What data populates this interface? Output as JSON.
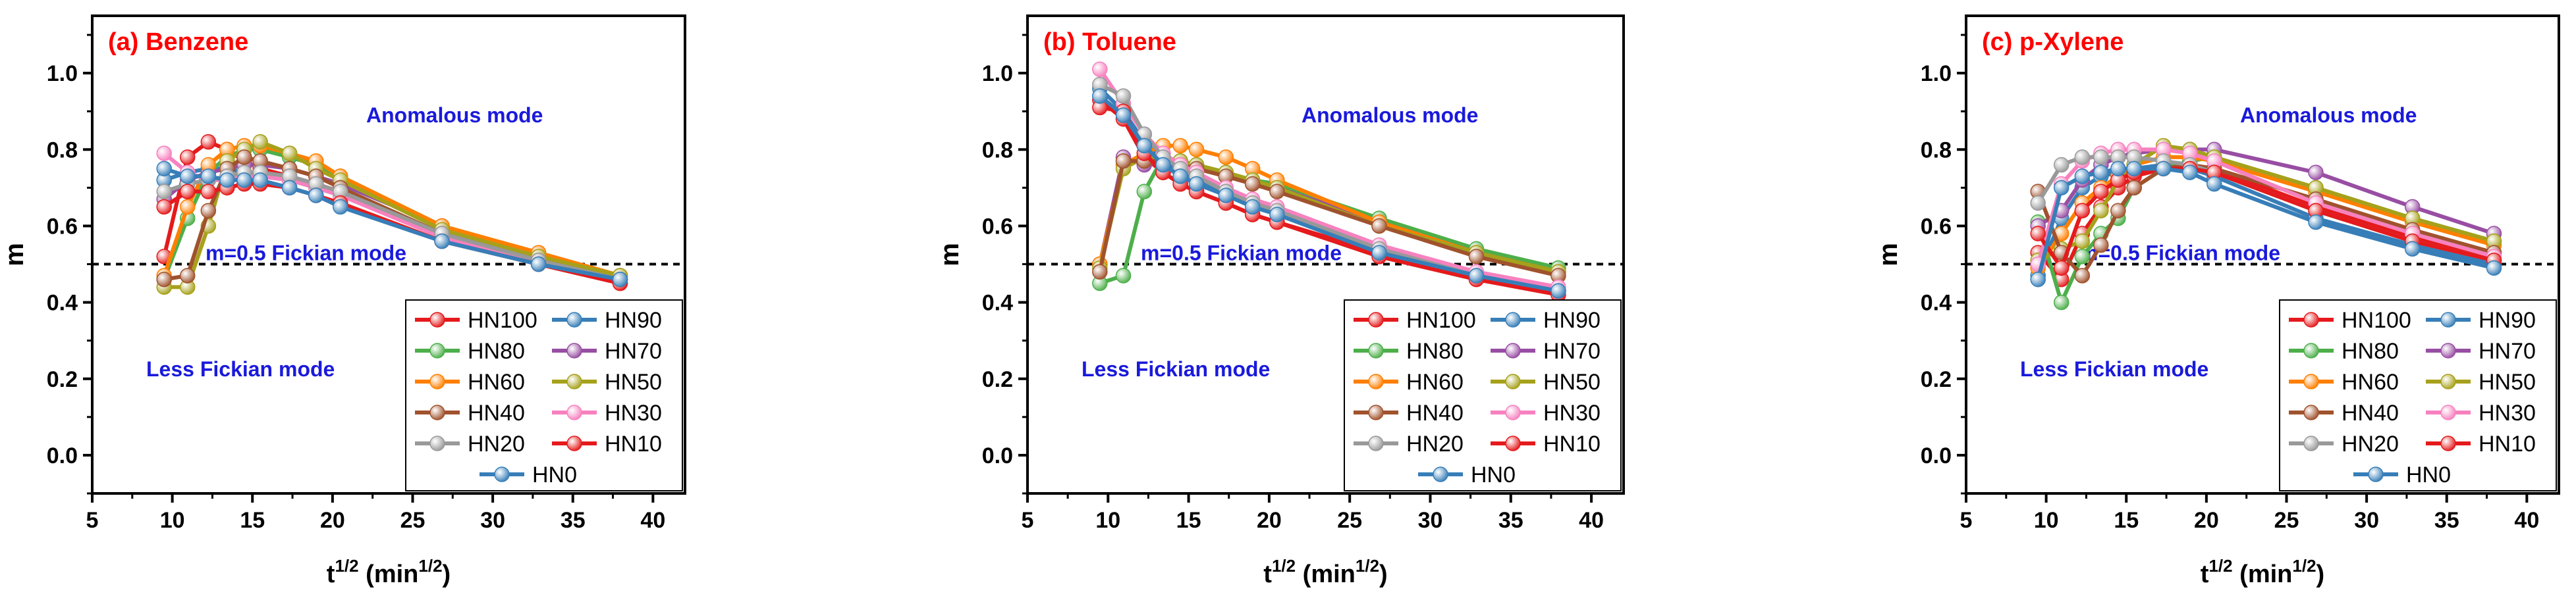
{
  "series_styles": [
    {
      "name": "HN100",
      "color": "#e41a1c"
    },
    {
      "name": "HN90",
      "color": "#377eb8"
    },
    {
      "name": "HN80",
      "color": "#4daf4a"
    },
    {
      "name": "HN70",
      "color": "#984ea3"
    },
    {
      "name": "HN60",
      "color": "#ff7f00"
    },
    {
      "name": "HN50",
      "color": "#a6a11b"
    },
    {
      "name": "HN40",
      "color": "#a0522d"
    },
    {
      "name": "HN30",
      "color": "#f781bf"
    },
    {
      "name": "HN20",
      "color": "#999999"
    },
    {
      "name": "HN10",
      "color": "#e41a1c"
    },
    {
      "name": "HN0",
      "color": "#377eb8"
    }
  ],
  "chart_data": [
    {
      "type": "line",
      "title": "(a) Benzene",
      "xlabel": "t1/2 (min1/2)",
      "ylabel": "m",
      "xlim": [
        5,
        42
      ],
      "ylim": [
        -0.1,
        1.15
      ],
      "xticks": [
        5,
        10,
        15,
        20,
        25,
        30,
        35,
        40
      ],
      "yticks": [
        0.0,
        0.2,
        0.4,
        0.6,
        0.8,
        1.0
      ],
      "reference_line": {
        "y": 0.5,
        "label": "m=0.5 Fickian mode"
      },
      "annotations": {
        "upper": "Anomalous mode",
        "lower": "Less Fickian mode"
      },
      "x": [
        9.49,
        10.95,
        12.25,
        13.42,
        14.49,
        15.49,
        17.32,
        18.97,
        20.49,
        26.83,
        32.86,
        37.95
      ],
      "series": [
        {
          "name": "HN100",
          "values": [
            0.52,
            0.78,
            0.82,
            0.8,
            0.77,
            0.75,
            0.73,
            0.71,
            0.69,
            0.58,
            0.5,
            0.45
          ]
        },
        {
          "name": "HN90",
          "values": [
            0.72,
            0.74,
            0.75,
            0.75,
            0.74,
            0.73,
            0.72,
            0.7,
            0.68,
            0.58,
            0.51,
            0.46
          ]
        },
        {
          "name": "HN80",
          "values": [
            0.46,
            0.62,
            0.74,
            0.78,
            0.8,
            0.8,
            0.78,
            0.76,
            0.73,
            0.6,
            0.52,
            0.47
          ]
        },
        {
          "name": "HN70",
          "values": [
            0.67,
            0.72,
            0.74,
            0.75,
            0.76,
            0.76,
            0.75,
            0.73,
            0.71,
            0.6,
            0.52,
            0.47
          ]
        },
        {
          "name": "HN60",
          "values": [
            0.47,
            0.65,
            0.76,
            0.8,
            0.81,
            0.81,
            0.79,
            0.77,
            0.73,
            0.6,
            0.53,
            0.47
          ]
        },
        {
          "name": "HN50",
          "values": [
            0.44,
            0.44,
            0.6,
            0.77,
            0.8,
            0.82,
            0.79,
            0.75,
            0.72,
            0.59,
            0.52,
            0.47
          ]
        },
        {
          "name": "HN40",
          "values": [
            0.46,
            0.47,
            0.64,
            0.75,
            0.78,
            0.77,
            0.75,
            0.73,
            0.7,
            0.58,
            0.51,
            0.46
          ]
        },
        {
          "name": "HN30",
          "values": [
            0.79,
            0.74,
            0.72,
            0.72,
            0.73,
            0.73,
            0.72,
            0.7,
            0.68,
            0.57,
            0.5,
            0.46
          ]
        },
        {
          "name": "HN20",
          "values": [
            0.69,
            0.71,
            0.72,
            0.73,
            0.74,
            0.74,
            0.73,
            0.71,
            0.69,
            0.58,
            0.51,
            0.46
          ]
        },
        {
          "name": "HN10",
          "values": [
            0.65,
            0.69,
            0.69,
            0.7,
            0.71,
            0.71,
            0.7,
            0.68,
            0.66,
            0.56,
            0.5,
            0.45
          ]
        },
        {
          "name": "HN0",
          "values": [
            0.75,
            0.73,
            0.73,
            0.72,
            0.72,
            0.72,
            0.7,
            0.68,
            0.65,
            0.56,
            0.5,
            0.46
          ]
        }
      ]
    },
    {
      "type": "line",
      "title": "(b) Toluene",
      "xlabel": "t1/2 (min1/2)",
      "ylabel": "m",
      "xlim": [
        5,
        42
      ],
      "ylim": [
        -0.1,
        1.15
      ],
      "xticks": [
        5,
        10,
        15,
        20,
        25,
        30,
        35,
        40
      ],
      "yticks": [
        0.0,
        0.2,
        0.4,
        0.6,
        0.8,
        1.0
      ],
      "reference_line": {
        "y": 0.5,
        "label": "m=0.5 Fickian mode"
      },
      "annotations": {
        "upper": "Anomalous mode",
        "lower": "Less Fickian mode"
      },
      "x": [
        9.49,
        10.95,
        12.25,
        13.42,
        14.49,
        15.49,
        17.32,
        18.97,
        20.49,
        26.83,
        32.86,
        37.95
      ],
      "series": [
        {
          "name": "HN100",
          "values": [
            0.93,
            0.88,
            0.78,
            0.74,
            0.71,
            0.69,
            0.66,
            0.63,
            0.61,
            0.53,
            0.47,
            0.43
          ]
        },
        {
          "name": "HN90",
          "values": [
            0.96,
            0.9,
            0.82,
            0.77,
            0.74,
            0.72,
            0.69,
            0.66,
            0.64,
            0.54,
            0.47,
            0.43
          ]
        },
        {
          "name": "HN80",
          "values": [
            0.45,
            0.47,
            0.69,
            0.78,
            0.77,
            0.76,
            0.74,
            0.72,
            0.71,
            0.62,
            0.54,
            0.49
          ]
        },
        {
          "name": "HN70",
          "values": [
            0.5,
            0.78,
            0.76,
            0.77,
            0.76,
            0.75,
            0.73,
            0.71,
            0.7,
            0.61,
            0.53,
            0.48
          ]
        },
        {
          "name": "HN60",
          "values": [
            0.5,
            0.76,
            0.79,
            0.81,
            0.81,
            0.8,
            0.78,
            0.75,
            0.72,
            0.61,
            0.53,
            0.48
          ]
        },
        {
          "name": "HN50",
          "values": [
            0.49,
            0.75,
            0.78,
            0.78,
            0.77,
            0.76,
            0.74,
            0.72,
            0.7,
            0.6,
            0.53,
            0.48
          ]
        },
        {
          "name": "HN40",
          "values": [
            0.48,
            0.77,
            0.77,
            0.77,
            0.76,
            0.75,
            0.73,
            0.71,
            0.69,
            0.6,
            0.52,
            0.47
          ]
        },
        {
          "name": "HN30",
          "values": [
            1.01,
            0.92,
            0.84,
            0.79,
            0.76,
            0.74,
            0.7,
            0.67,
            0.65,
            0.55,
            0.48,
            0.44
          ]
        },
        {
          "name": "HN20",
          "values": [
            0.97,
            0.94,
            0.84,
            0.78,
            0.75,
            0.73,
            0.69,
            0.66,
            0.64,
            0.54,
            0.47,
            0.43
          ]
        },
        {
          "name": "HN10",
          "values": [
            0.91,
            0.9,
            0.79,
            0.74,
            0.71,
            0.69,
            0.66,
            0.63,
            0.61,
            0.52,
            0.46,
            0.42
          ]
        },
        {
          "name": "HN0",
          "values": [
            0.94,
            0.89,
            0.81,
            0.76,
            0.73,
            0.71,
            0.68,
            0.65,
            0.63,
            0.53,
            0.47,
            0.43
          ]
        }
      ]
    },
    {
      "type": "line",
      "title": "(c) p-Xylene",
      "xlabel": "t1/2 (min1/2)",
      "ylabel": "m",
      "xlim": [
        5,
        42
      ],
      "ylim": [
        -0.1,
        1.15
      ],
      "xticks": [
        5,
        10,
        15,
        20,
        25,
        30,
        35,
        40
      ],
      "yticks": [
        0.0,
        0.2,
        0.4,
        0.6,
        0.8,
        1.0
      ],
      "reference_line": {
        "y": 0.5,
        "label": "m=0.5 Fickian mode"
      },
      "annotations": {
        "upper": "Anomalous mode",
        "lower": "Less Fickian mode"
      },
      "x": [
        9.49,
        10.95,
        12.25,
        13.42,
        14.49,
        15.49,
        17.32,
        18.97,
        20.49,
        26.83,
        32.86,
        37.95
      ],
      "series": [
        {
          "name": "HN100",
          "values": [
            0.53,
            0.46,
            0.58,
            0.65,
            0.7,
            0.73,
            0.75,
            0.76,
            0.75,
            0.65,
            0.57,
            0.51
          ]
        },
        {
          "name": "HN90",
          "values": [
            0.47,
            0.62,
            0.7,
            0.73,
            0.74,
            0.75,
            0.76,
            0.75,
            0.73,
            0.62,
            0.55,
            0.5
          ]
        },
        {
          "name": "HN80",
          "values": [
            0.61,
            0.4,
            0.52,
            0.58,
            0.62,
            0.7,
            0.75,
            0.77,
            0.78,
            0.7,
            0.62,
            0.56
          ]
        },
        {
          "name": "HN70",
          "values": [
            0.6,
            0.64,
            0.72,
            0.76,
            0.78,
            0.79,
            0.8,
            0.8,
            0.8,
            0.74,
            0.65,
            0.58
          ]
        },
        {
          "name": "HN60",
          "values": [
            0.49,
            0.58,
            0.66,
            0.7,
            0.73,
            0.76,
            0.78,
            0.78,
            0.77,
            0.69,
            0.61,
            0.55
          ]
        },
        {
          "name": "HN50",
          "values": [
            0.51,
            0.54,
            0.56,
            0.64,
            0.72,
            0.76,
            0.81,
            0.8,
            0.78,
            0.7,
            0.62,
            0.56
          ]
        },
        {
          "name": "HN40",
          "values": [
            0.69,
            0.53,
            0.47,
            0.55,
            0.64,
            0.7,
            0.75,
            0.76,
            0.75,
            0.67,
            0.59,
            0.53
          ]
        },
        {
          "name": "HN30",
          "values": [
            0.5,
            0.71,
            0.77,
            0.79,
            0.8,
            0.8,
            0.8,
            0.79,
            0.77,
            0.66,
            0.58,
            0.52
          ]
        },
        {
          "name": "HN20",
          "values": [
            0.66,
            0.76,
            0.78,
            0.78,
            0.78,
            0.78,
            0.77,
            0.76,
            0.74,
            0.64,
            0.56,
            0.51
          ]
        },
        {
          "name": "HN10",
          "values": [
            0.58,
            0.49,
            0.64,
            0.69,
            0.72,
            0.74,
            0.75,
            0.75,
            0.74,
            0.64,
            0.56,
            0.51
          ]
        },
        {
          "name": "HN0",
          "values": [
            0.46,
            0.7,
            0.73,
            0.74,
            0.75,
            0.75,
            0.75,
            0.74,
            0.71,
            0.61,
            0.54,
            0.49
          ]
        }
      ]
    }
  ]
}
